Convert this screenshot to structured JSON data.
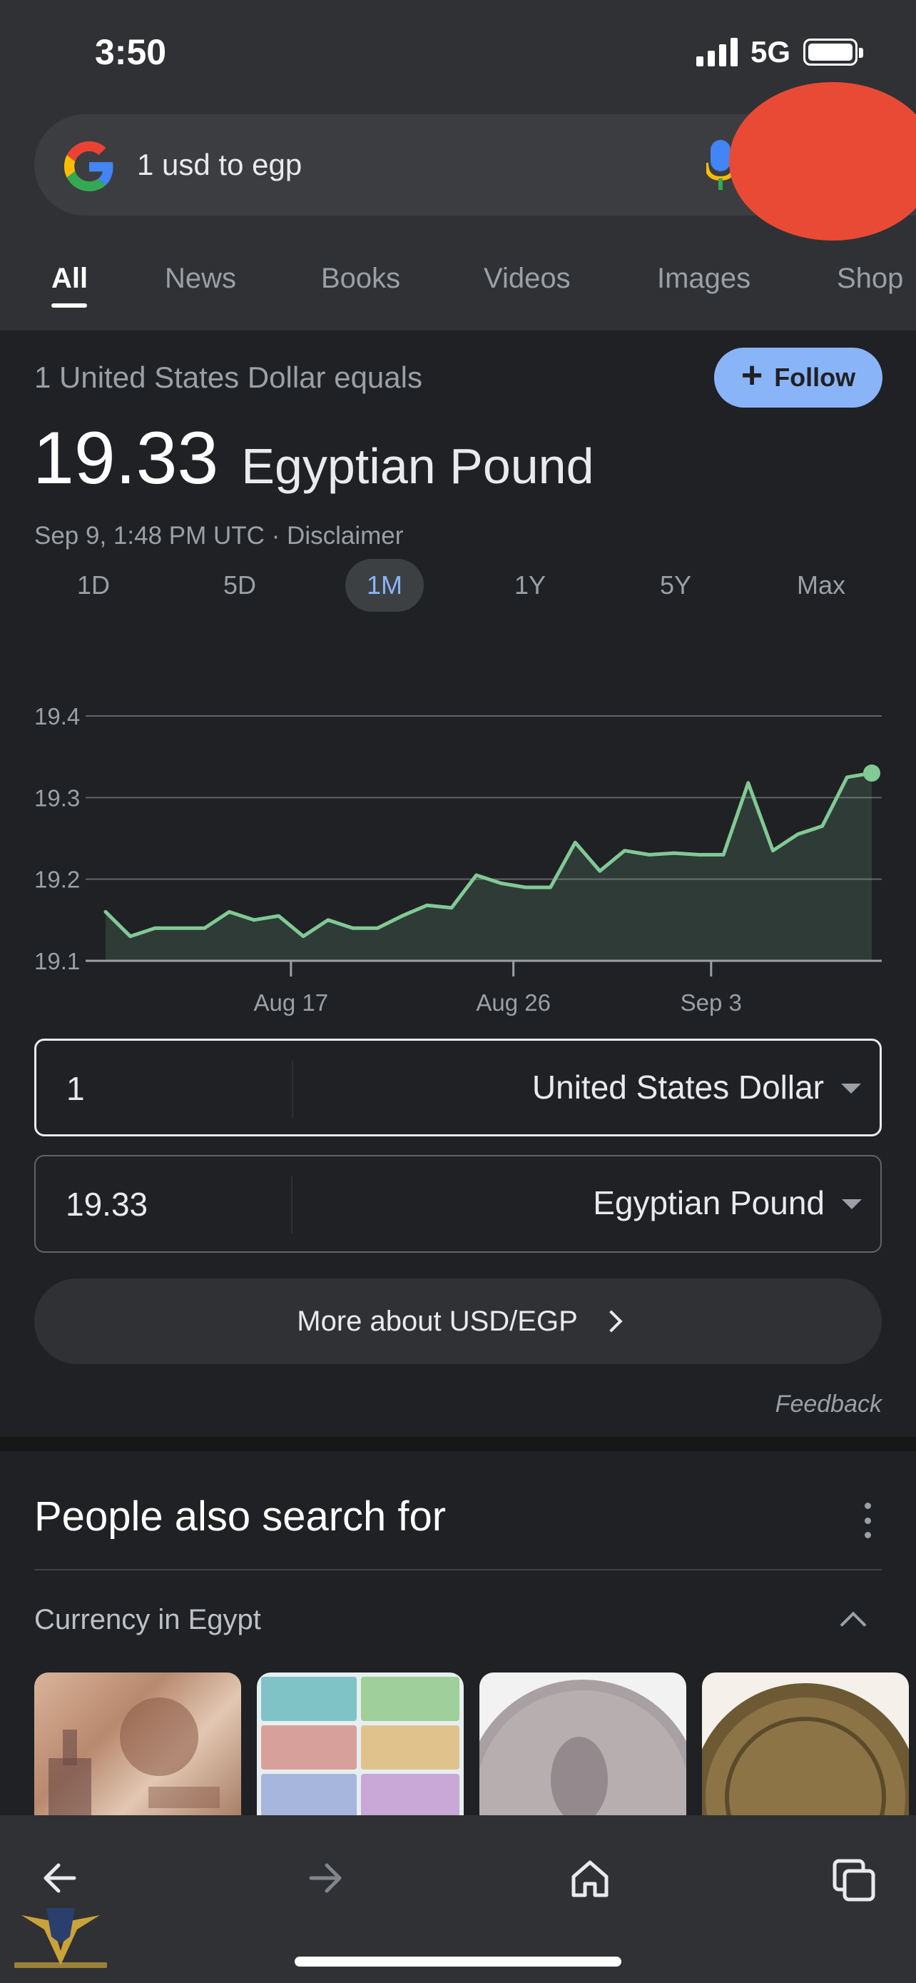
{
  "status_bar": {
    "time": "3:50",
    "network": "5G"
  },
  "search": {
    "query": "1 usd to egp"
  },
  "tabs": [
    {
      "label": "All",
      "active": true
    },
    {
      "label": "News",
      "active": false
    },
    {
      "label": "Books",
      "active": false
    },
    {
      "label": "Videos",
      "active": false
    },
    {
      "label": "Images",
      "active": false
    },
    {
      "label": "Shop",
      "active": false
    }
  ],
  "converter": {
    "equals_label": "1 United States Dollar equals",
    "follow_label": "Follow",
    "rate_value": "19.33",
    "rate_currency": "Egyptian Pound",
    "timestamp": "Sep 9, 1:48 PM UTC",
    "disclaimer": "Disclaimer",
    "ranges": [
      "1D",
      "5D",
      "1M",
      "1Y",
      "5Y",
      "Max"
    ],
    "active_range": "1M",
    "from": {
      "amount": "1",
      "currency": "United States Dollar"
    },
    "to": {
      "amount": "19.33",
      "currency": "Egyptian Pound"
    },
    "more_label": "More about USD/EGP",
    "feedback_label": "Feedback"
  },
  "chart_data": {
    "type": "area",
    "series": [
      {
        "values": [
          19.16,
          19.13,
          19.14,
          19.14,
          19.14,
          19.16,
          19.15,
          19.155,
          19.13,
          19.15,
          19.14,
          19.14,
          19.155,
          19.168,
          19.165,
          19.205,
          19.195,
          19.19,
          19.19,
          19.245,
          19.21,
          19.235,
          19.23,
          19.232,
          19.23,
          19.23,
          19.318,
          19.235,
          19.255,
          19.265,
          19.325,
          19.33
        ]
      }
    ],
    "x_tick_labels": [
      "Aug 17",
      "Aug 26",
      "Sep 3"
    ],
    "x_tick_index": [
      7.5,
      16.5,
      24.5
    ],
    "y_ticks": [
      19.1,
      19.2,
      19.3,
      19.4
    ],
    "ylim": [
      19.1,
      19.4
    ],
    "grid": true,
    "line_color": "#81c995"
  },
  "people_also_search": {
    "title": "People also search for",
    "category": "Currency in Egypt"
  },
  "colors": {
    "accent": "#8ab4f8",
    "background": "#202124",
    "redaction": "#e94a35"
  }
}
